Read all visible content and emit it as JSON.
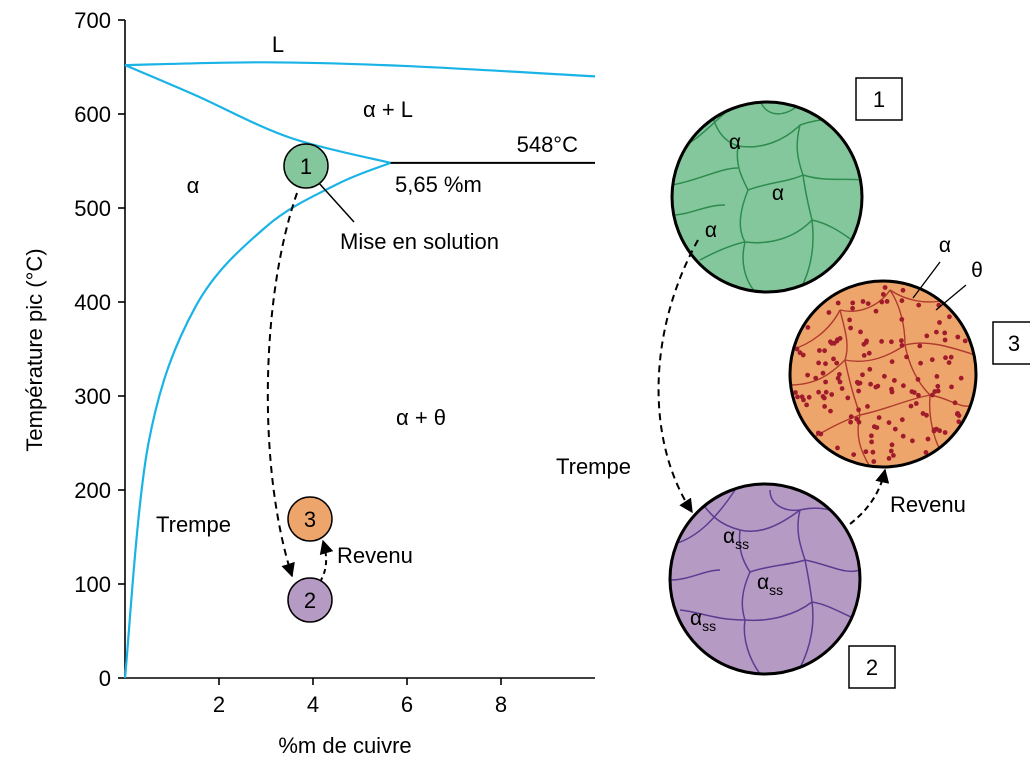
{
  "colors": {
    "liquidus_solvus": "#1ab3e6",
    "green_fill": "#84c79c",
    "green_line": "#2d8c4e",
    "purple_fill": "#b59bc3",
    "purple_line": "#5a3c91",
    "orange_fill": "#eea56c",
    "orange_line": "#b03a2e",
    "precipitate": "#a01c2c"
  },
  "chart_data": {
    "type": "line",
    "xlabel": "%m de cuivre",
    "ylabel": "Température pic (°C)",
    "xlim": [
      0,
      10
    ],
    "ylim": [
      0,
      700
    ],
    "x_ticks": [
      2,
      4,
      6,
      8
    ],
    "y_ticks": [
      0,
      100,
      200,
      300,
      400,
      500,
      600,
      700
    ],
    "series": [
      {
        "values": [
          [
            0,
            652
          ],
          [
            3,
            655
          ],
          [
            6,
            651
          ],
          [
            10,
            640
          ]
        ]
      },
      {
        "values": [
          [
            0,
            652
          ],
          [
            1.5,
            620
          ],
          [
            3.5,
            575
          ],
          [
            5.65,
            548
          ]
        ]
      },
      {
        "values": [
          [
            0,
            0
          ],
          [
            0.5,
            250
          ],
          [
            1.5,
            395
          ],
          [
            3,
            480
          ],
          [
            4.5,
            525
          ],
          [
            5.65,
            548
          ]
        ]
      },
      {
        "values": [
          [
            5.65,
            548
          ],
          [
            10,
            548
          ]
        ]
      }
    ],
    "eutectic": {
      "temperature": 548,
      "composition": 5.65
    },
    "points": [
      {
        "label": "1",
        "x": 4,
        "y": 545
      },
      {
        "label": "2",
        "x": 4,
        "y": 80
      },
      {
        "label": "3",
        "x": 4,
        "y": 165
      }
    ]
  },
  "labels": {
    "region_L": "L",
    "region_alpha_L": "α + L",
    "region_alpha": "α",
    "region_alpha_theta": "α + θ",
    "eutectic_temp": "548°C",
    "eutectic_comp": "5,65 %m",
    "solution": "Mise en solution",
    "quench": "Trempe",
    "temper": "Revenu"
  },
  "steps": {
    "one": "1",
    "two": "2",
    "three": "3"
  },
  "micro": {
    "alpha": "α",
    "theta": "θ",
    "alpha_ss_base": "α",
    "alpha_ss_sub": "ss"
  }
}
